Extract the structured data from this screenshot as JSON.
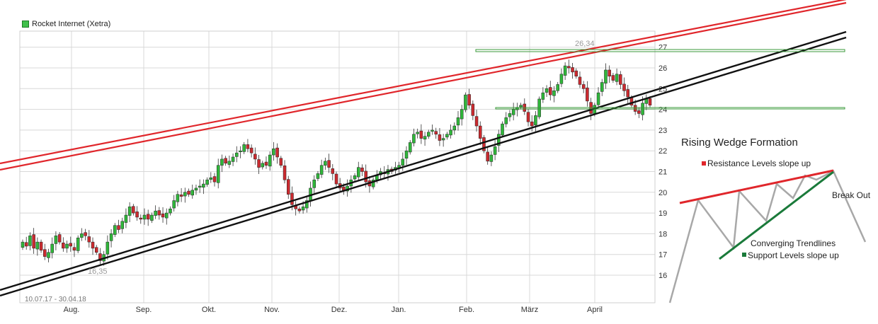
{
  "chart_data": {
    "type": "candlestick",
    "legend": {
      "label": "Rocket Internet (Xetra)",
      "color": "#3fc04a"
    },
    "date_range_label": "10.07.17 - 30.04.18",
    "x_tick_labels": [
      "Aug.",
      "Sep.",
      "Okt.",
      "Nov.",
      "Dez.",
      "Jan.",
      "Feb.",
      "März",
      "April"
    ],
    "y_tick_labels": [
      16,
      17,
      18,
      19,
      20,
      21,
      22,
      23,
      24,
      25,
      26,
      27
    ],
    "ylim": [
      15.3,
      27.3
    ],
    "annotations": {
      "high_label": "26,34",
      "low_label": "16,35"
    },
    "colors": {
      "up": "#2fb73a",
      "down": "#cc2a2f",
      "resistance": "#e0262b",
      "support": "#111111",
      "horizontal": "#3a9a3a",
      "grid": "#d8d8d8"
    },
    "series": [
      {
        "name": "Rocket Internet (Xetra)",
        "closes": [
          17.6,
          17.4,
          17.9,
          17.3,
          17.6,
          17.2,
          16.9,
          17.1,
          17.5,
          17.9,
          17.6,
          17.3,
          17.5,
          17.4,
          17.2,
          17.8,
          18.0,
          17.9,
          17.6,
          17.3,
          17.1,
          16.7,
          17.0,
          17.6,
          18.0,
          18.4,
          18.2,
          18.6,
          18.9,
          19.3,
          19.0,
          18.8,
          18.7,
          18.9,
          18.7,
          18.9,
          19.1,
          18.9,
          18.8,
          19.0,
          19.2,
          19.6,
          19.9,
          19.8,
          20.0,
          19.9,
          20.1,
          20.2,
          20.3,
          20.4,
          20.6,
          20.7,
          20.5,
          21.3,
          21.6,
          21.4,
          21.5,
          21.7,
          21.9,
          22.0,
          22.3,
          22.1,
          21.9,
          21.6,
          21.2,
          21.4,
          21.3,
          21.8,
          22.1,
          21.7,
          21.3,
          20.6,
          19.9,
          19.4,
          19.2,
          19.1,
          19.3,
          19.6,
          20.2,
          20.6,
          20.9,
          21.3,
          21.5,
          21.2,
          20.9,
          20.4,
          20.2,
          20.1,
          20.3,
          20.6,
          20.8,
          21.2,
          21.0,
          20.5,
          20.3,
          20.6,
          20.8,
          21.0,
          20.9,
          21.1,
          21.0,
          21.2,
          21.3,
          21.6,
          22.0,
          22.4,
          22.8,
          22.9,
          22.6,
          22.7,
          22.9,
          23.0,
          22.8,
          22.5,
          22.6,
          22.8,
          23.0,
          23.2,
          23.6,
          24.0,
          24.7,
          24.2,
          23.7,
          23.2,
          22.6,
          22.0,
          21.5,
          21.8,
          22.2,
          22.8,
          23.3,
          23.6,
          23.8,
          24.0,
          24.1,
          24.2,
          23.9,
          23.4,
          23.2,
          23.7,
          24.5,
          24.8,
          25.0,
          24.7,
          24.9,
          25.2,
          25.7,
          26.1,
          26.0,
          25.8,
          25.6,
          25.2,
          25.0,
          24.4,
          23.8,
          24.2,
          24.8,
          25.3,
          25.9,
          25.6,
          25.4,
          25.7,
          25.2,
          24.9,
          24.6,
          24.2,
          23.9,
          23.8,
          24.3,
          24.5,
          24.2
        ]
      }
    ]
  }
}
